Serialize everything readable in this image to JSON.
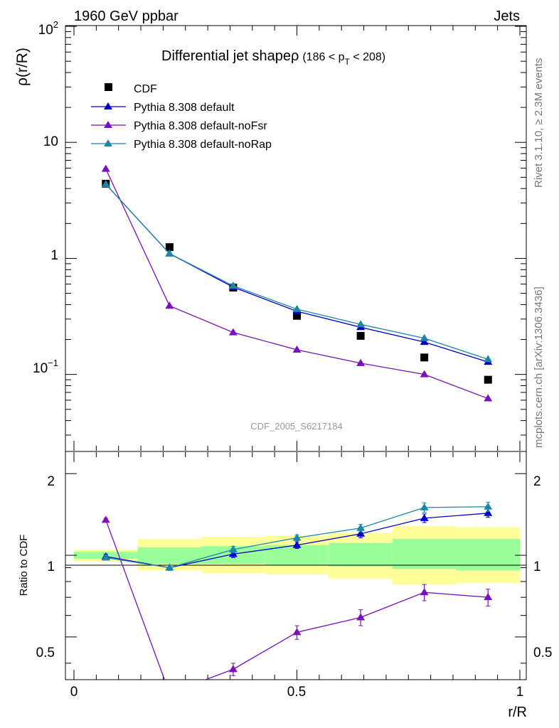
{
  "header": {
    "left": "1960 GeV ppbar",
    "right": "Jets"
  },
  "side_labels": {
    "rivet": "Rivet 3.1.10, ≥ 2.3M events",
    "mcplots": "mcplots.cern.ch [arXiv:1306.3436]"
  },
  "watermark": "CDF_2005_S6217184",
  "title": {
    "main": "Differential jet shapeρ",
    "range_prefix": "(186 < p",
    "range_sub": "T",
    "range_suffix": " < 208)"
  },
  "axes": {
    "ylabel_top": "ρ(r/R)",
    "ylabel_bottom": "Ratio to CDF",
    "xlabel": "r/R",
    "x_ticks": [
      "0",
      "0.5",
      "1"
    ],
    "y_top_ticks": {
      "e2_base": "10",
      "e2_exp": "2",
      "ten": "10",
      "one": "1",
      "em1_base": "10",
      "em1_exp": "−1"
    },
    "y_bottom_ticks": [
      "2",
      "1",
      "0.5"
    ]
  },
  "colors": {
    "cdf": "#000000",
    "default": "#0000cc",
    "noFsr": "#7a0fbd",
    "noRap": "#1a87a8",
    "band_inner": "#99ff99",
    "band_outer": "#ffff99"
  },
  "legend": [
    {
      "label": "CDF",
      "key": "cdf",
      "marker": "square"
    },
    {
      "label": "Pythia 8.308 default",
      "key": "default",
      "marker": "triangle"
    },
    {
      "label": "Pythia 8.308 default-noFsr",
      "key": "noFsr",
      "marker": "triangle"
    },
    {
      "label": "Pythia 8.308 default-noRap",
      "key": "noRap",
      "marker": "triangle"
    }
  ],
  "chart_data": {
    "type": "scatter",
    "x": [
      0.0714,
      0.2143,
      0.3571,
      0.5,
      0.6429,
      0.7857,
      0.9286
    ],
    "x_bins": [
      [
        0.0,
        0.1429
      ],
      [
        0.1429,
        0.2857
      ],
      [
        0.2857,
        0.4286
      ],
      [
        0.4286,
        0.5714
      ],
      [
        0.5714,
        0.7143
      ],
      [
        0.7143,
        0.8571
      ],
      [
        0.8571,
        1.0
      ]
    ],
    "xlim": [
      -0.02,
      1.04
    ],
    "ylim_top": [
      0.022,
      100
    ],
    "ylim_bottom": [
      0.35,
      2.4
    ],
    "y_scale": "log",
    "series": [
      {
        "name": "CDF",
        "key": "cdf",
        "values": [
          4.4,
          1.25,
          0.56,
          0.32,
          0.215,
          0.14,
          0.09
        ]
      },
      {
        "name": "Pythia 8.308 default",
        "key": "default",
        "values": [
          4.35,
          1.1,
          0.565,
          0.35,
          0.255,
          0.19,
          0.128
        ]
      },
      {
        "name": "Pythia 8.308 default-noFsr",
        "key": "noFsr",
        "values": [
          5.9,
          0.39,
          0.23,
          0.163,
          0.125,
          0.1,
          0.062
        ]
      },
      {
        "name": "Pythia 8.308 default-noRap",
        "key": "noRap",
        "values": [
          4.35,
          1.1,
          0.58,
          0.365,
          0.27,
          0.205,
          0.135
        ]
      }
    ],
    "ratio": {
      "ylabel": "Ratio to CDF",
      "series": [
        {
          "key": "default",
          "values": [
            0.99,
            0.9,
            1.01,
            1.09,
            1.2,
            1.37,
            1.43
          ],
          "errors": [
            0.02,
            0.02,
            0.03,
            0.03,
            0.04,
            0.05,
            0.05
          ]
        },
        {
          "key": "noFsr",
          "values": [
            1.35,
            0.31,
            0.38,
            0.52,
            0.59,
            0.73,
            0.7
          ],
          "errors": [
            0.02,
            0.02,
            0.02,
            0.03,
            0.04,
            0.05,
            0.05
          ]
        },
        {
          "key": "noRap",
          "values": [
            0.98,
            0.9,
            1.05,
            1.16,
            1.26,
            1.5,
            1.51
          ],
          "errors": [
            0.02,
            0.02,
            0.03,
            0.03,
            0.04,
            0.06,
            0.06
          ]
        }
      ],
      "band_inner": [
        [
          0.97,
          1.03
        ],
        [
          0.93,
          1.07
        ],
        [
          0.93,
          1.08
        ],
        [
          0.92,
          1.09
        ],
        [
          0.91,
          1.11
        ],
        [
          0.89,
          1.15
        ],
        [
          0.88,
          1.15
        ]
      ],
      "band_outer": [
        [
          0.95,
          1.05
        ],
        [
          0.88,
          1.15
        ],
        [
          0.86,
          1.17
        ],
        [
          0.85,
          1.18
        ],
        [
          0.82,
          1.21
        ],
        [
          0.78,
          1.28
        ],
        [
          0.79,
          1.27
        ]
      ]
    }
  }
}
